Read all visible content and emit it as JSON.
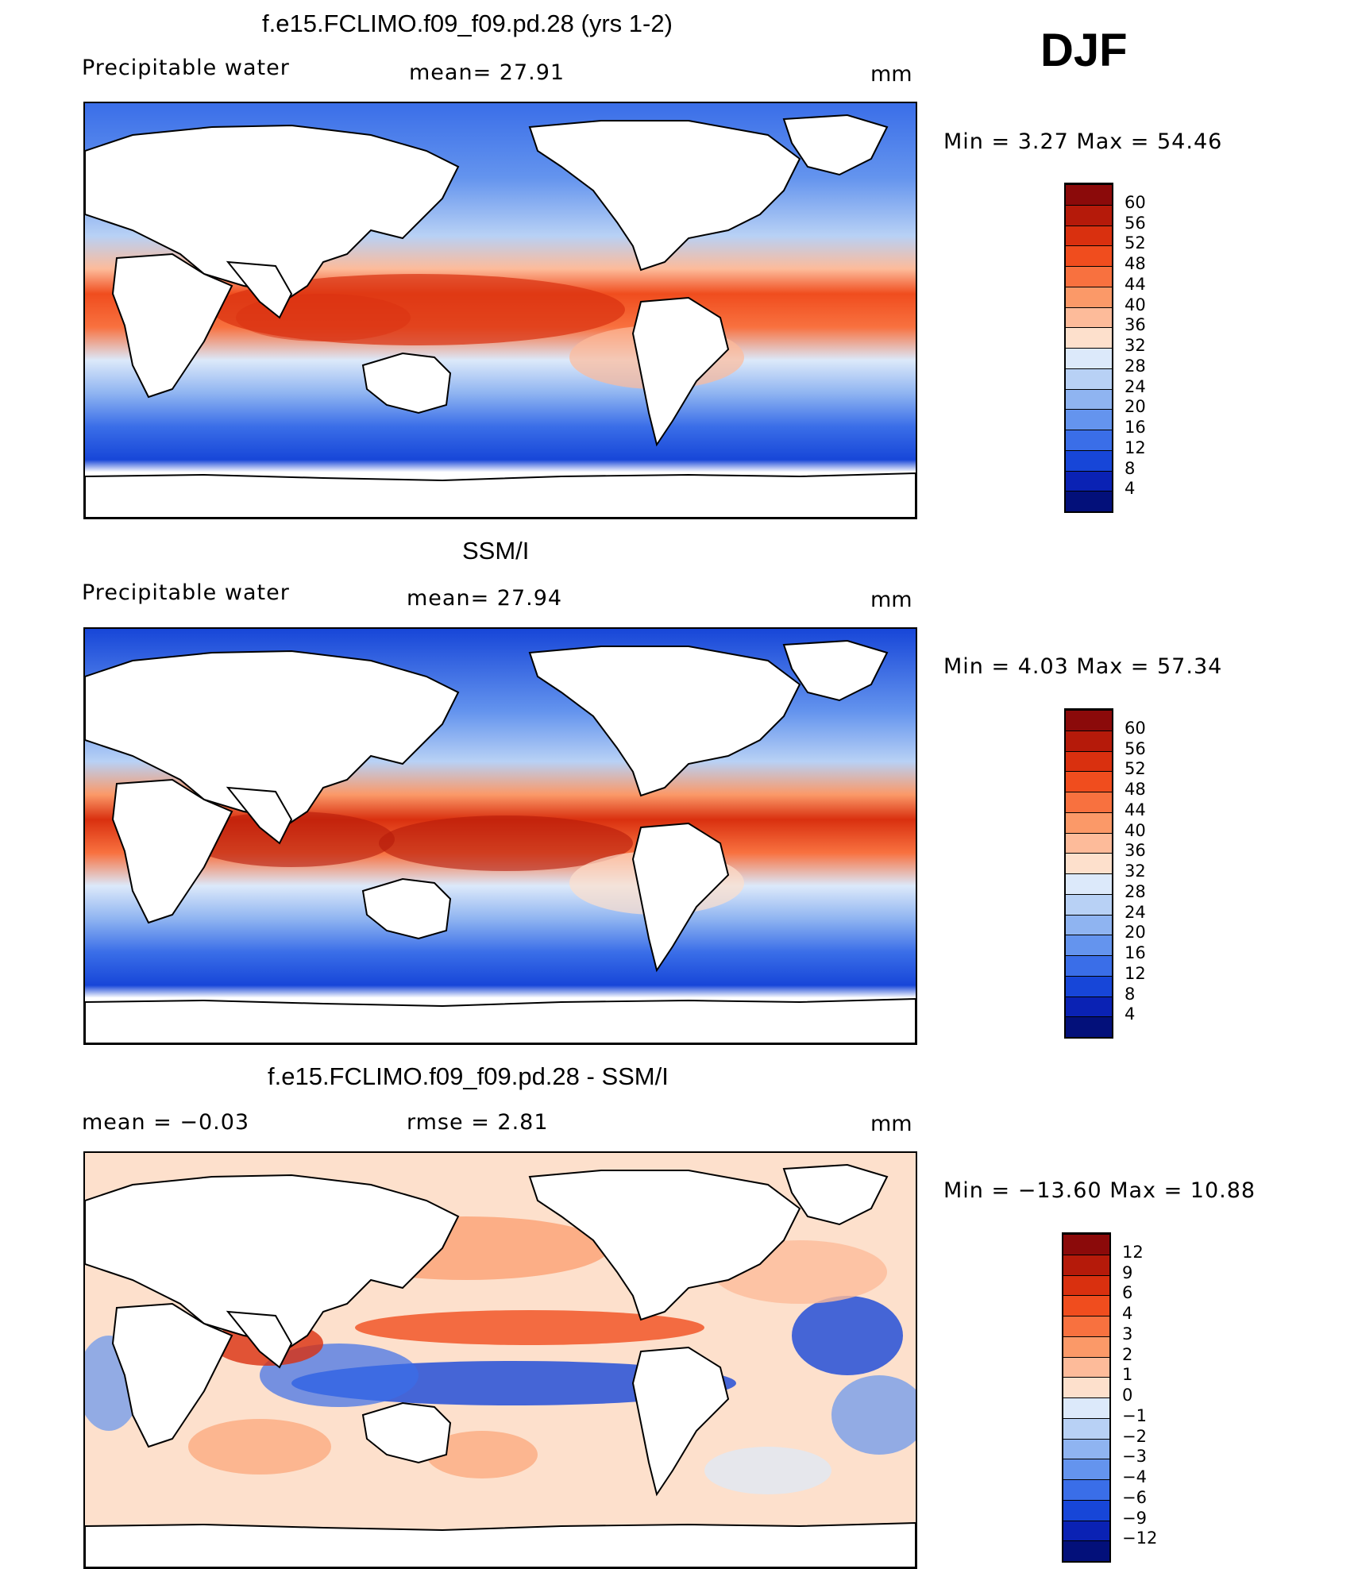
{
  "season": "DJF",
  "panels": [
    {
      "id": "model",
      "title": "f.e15.FCLIMO.f09_f09.pd.28 (yrs 1-2)",
      "left_label": "Precipitable  water",
      "center_label": "mean=   27.91",
      "units": "mm",
      "stats": "Min  =     3.27  Max  =     54.46",
      "colorbar": {
        "labels": [
          "60",
          "56",
          "52",
          "48",
          "44",
          "40",
          "36",
          "32",
          "28",
          "24",
          "20",
          "16",
          "12",
          "8",
          "4"
        ],
        "colors": [
          "#8b0a0a",
          "#b51a0a",
          "#d9300f",
          "#f04d1e",
          "#f8713f",
          "#fb9968",
          "#fdbb9a",
          "#fde0cc",
          "#dce9fa",
          "#b8d1f5",
          "#8fb4f1",
          "#6494ee",
          "#3a6ee8",
          "#1746d8",
          "#0a22b4",
          "#03107a"
        ]
      }
    },
    {
      "id": "obs",
      "title": "SSM/I",
      "left_label": "Precipitable  water",
      "center_label": "mean=   27.94",
      "units": "mm",
      "stats": "Min  =     4.03  Max  =     57.34",
      "colorbar": {
        "labels": [
          "60",
          "56",
          "52",
          "48",
          "44",
          "40",
          "36",
          "32",
          "28",
          "24",
          "20",
          "16",
          "12",
          "8",
          "4"
        ],
        "colors": [
          "#8b0a0a",
          "#b51a0a",
          "#d9300f",
          "#f04d1e",
          "#f8713f",
          "#fb9968",
          "#fdbb9a",
          "#fde0cc",
          "#dce9fa",
          "#b8d1f5",
          "#8fb4f1",
          "#6494ee",
          "#3a6ee8",
          "#1746d8",
          "#0a22b4",
          "#03107a"
        ]
      }
    },
    {
      "id": "diff",
      "title": "f.e15.FCLIMO.f09_f09.pd.28 - SSM/I",
      "left_label": "mean  =     −0.03",
      "center_label": "rmse  =      2.81",
      "units": "mm",
      "stats": "Min  =  −13.60  Max  =     10.88",
      "colorbar": {
        "labels": [
          "12",
          "9",
          "6",
          "4",
          "3",
          "2",
          "1",
          "0",
          "−1",
          "−2",
          "−3",
          "−4",
          "−6",
          "−9",
          "−12"
        ],
        "colors": [
          "#8b0a0a",
          "#b51a0a",
          "#d9300f",
          "#f04d1e",
          "#f8713f",
          "#fb9968",
          "#fdbb9a",
          "#fde0cc",
          "#dce9fa",
          "#b8d1f5",
          "#8fb4f1",
          "#6494ee",
          "#3a6ee8",
          "#1746d8",
          "#0a22b4",
          "#03107a"
        ]
      }
    }
  ]
}
